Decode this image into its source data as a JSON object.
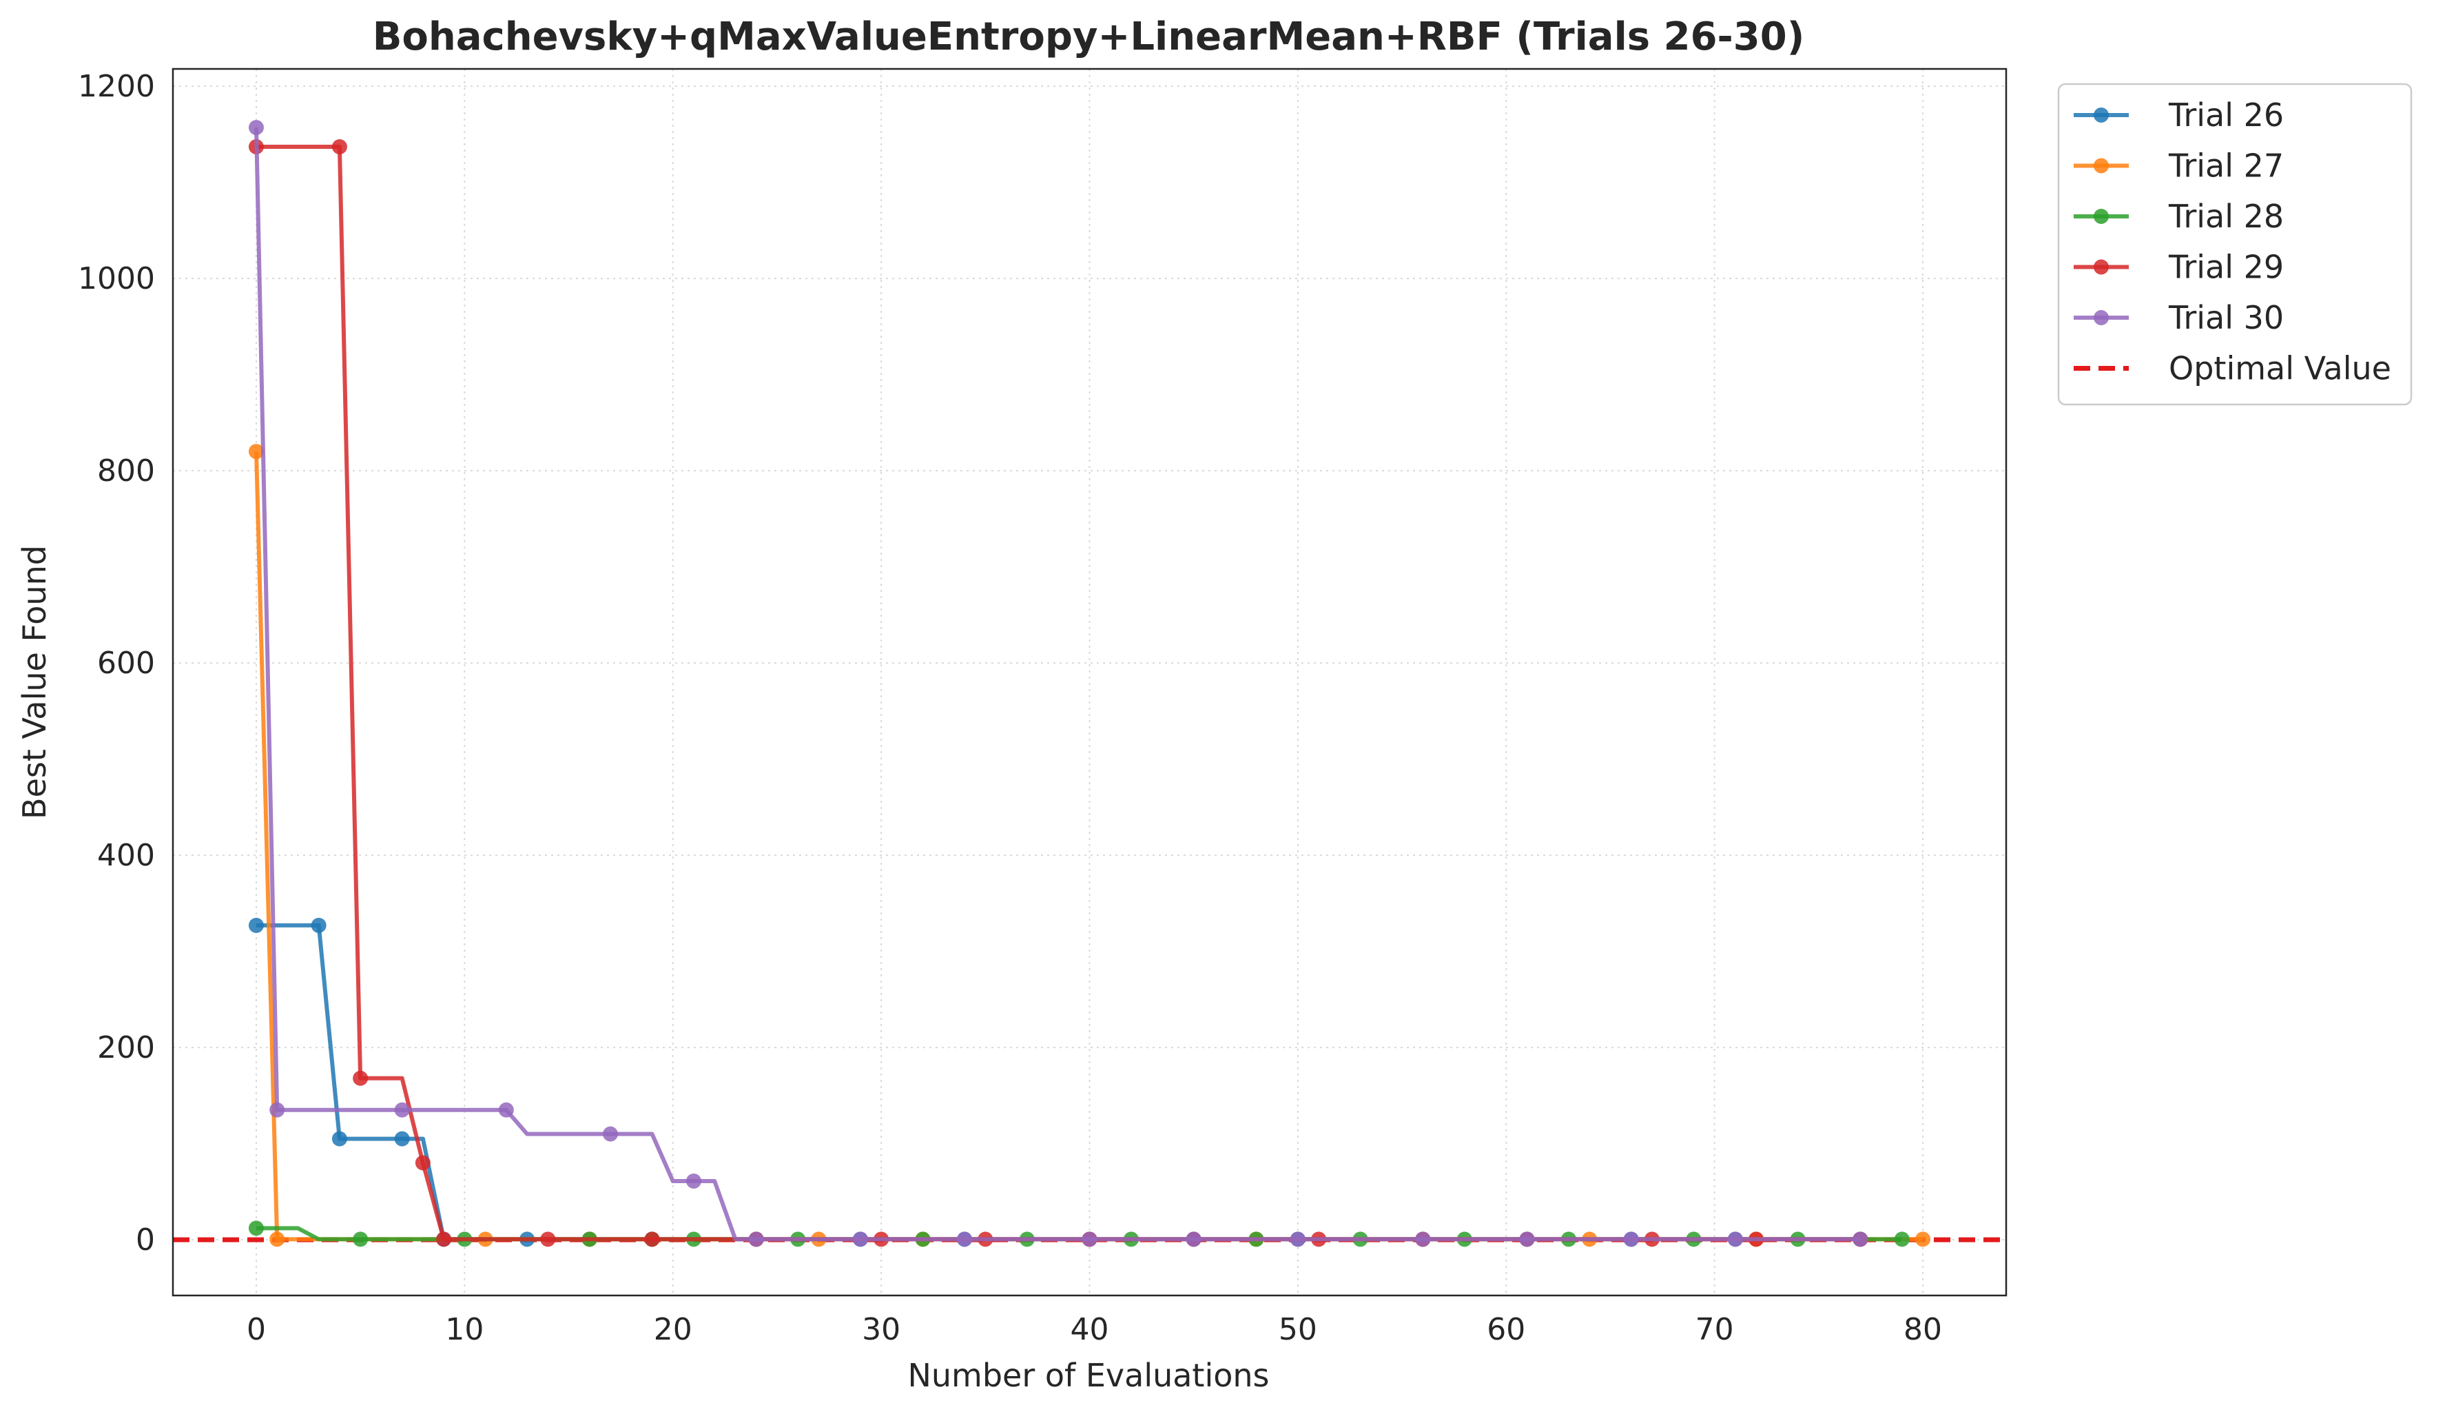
{
  "chart_data": {
    "type": "line",
    "title": "Bohachevsky+qMaxValueEntropy+LinearMean+RBF (Trials 26-30)",
    "xlabel": "Number of Evaluations",
    "ylabel": "Best Value Found",
    "xlim": [
      -4,
      84
    ],
    "ylim": [
      -58,
      1218
    ],
    "xticks": [
      0,
      10,
      20,
      30,
      40,
      50,
      60,
      70,
      80
    ],
    "yticks": [
      0,
      200,
      400,
      600,
      800,
      1000,
      1200
    ],
    "xtick_labels": [
      "0",
      "10",
      "20",
      "30",
      "40",
      "50",
      "60",
      "70",
      "80"
    ],
    "ytick_labels": [
      "0",
      "200",
      "400",
      "600",
      "800",
      "1000",
      "1200"
    ],
    "grid": true,
    "legend_position": "outside-top-right",
    "optimal_value": {
      "name": "Optimal Value",
      "value": 0,
      "color": "#e31a1c"
    },
    "series": [
      {
        "name": "Trial 26",
        "color": "#1f77b4",
        "x": [
          0,
          3,
          4,
          7,
          8,
          9,
          13,
          16,
          19,
          24,
          29,
          34,
          40,
          45,
          50,
          56,
          61,
          66,
          71,
          77
        ],
        "y": [
          327,
          327,
          105,
          105,
          105,
          0.5,
          0.5,
          0.5,
          0.5,
          0.5,
          0.5,
          0.5,
          0.5,
          0.5,
          0.5,
          0.5,
          0.5,
          0.5,
          0.5,
          0.5
        ],
        "markers": [
          0,
          3,
          4,
          7,
          9,
          13,
          16,
          19,
          24,
          29,
          34,
          40,
          45,
          50,
          56,
          61,
          66,
          71,
          77
        ]
      },
      {
        "name": "Trial 27",
        "color": "#ff7f0e",
        "x": [
          0,
          1,
          11,
          16,
          24,
          27,
          32,
          40,
          48,
          56,
          64,
          72,
          80
        ],
        "y": [
          820,
          0.5,
          0.5,
          0.5,
          0.5,
          0.5,
          0.5,
          0.5,
          0.5,
          0.5,
          0.5,
          0.5,
          0.5
        ],
        "markers": [
          0,
          1,
          11,
          16,
          24,
          27,
          32,
          40,
          48,
          56,
          64,
          72,
          80
        ]
      },
      {
        "name": "Trial 28",
        "color": "#2ca02c",
        "x": [
          0,
          2,
          3,
          5,
          10,
          16,
          19,
          21,
          26,
          32,
          37,
          42,
          48,
          53,
          58,
          63,
          69,
          74,
          79
        ],
        "y": [
          12,
          12,
          0.5,
          0.5,
          0.5,
          0.5,
          0.5,
          0.5,
          0.5,
          0.5,
          0.5,
          0.5,
          0.5,
          0.5,
          0.5,
          0.5,
          0.5,
          0.5,
          0.5
        ],
        "markers": [
          0,
          5,
          10,
          16,
          19,
          21,
          26,
          32,
          37,
          42,
          48,
          53,
          58,
          63,
          69,
          74,
          79
        ]
      },
      {
        "name": "Trial 29",
        "color": "#d62728",
        "x": [
          0,
          4,
          5,
          7,
          8,
          9,
          14,
          19,
          24,
          30,
          35,
          40,
          45,
          51,
          56,
          61,
          67,
          72,
          77
        ],
        "y": [
          1137,
          1137,
          168,
          168,
          80,
          0.5,
          0.5,
          0.5,
          0.5,
          0.5,
          0.5,
          0.5,
          0.5,
          0.5,
          0.5,
          0.5,
          0.5,
          0.5,
          0.5
        ],
        "markers": [
          0,
          4,
          5,
          8,
          9,
          14,
          19,
          24,
          30,
          35,
          40,
          45,
          51,
          56,
          61,
          67,
          72,
          77
        ]
      },
      {
        "name": "Trial 30",
        "color": "#9467bd",
        "x": [
          0,
          1,
          7,
          12,
          13,
          17,
          19,
          20,
          21,
          22,
          23,
          24,
          29,
          34,
          40,
          45,
          50,
          56,
          61,
          66,
          71,
          77
        ],
        "y": [
          1157,
          135,
          135,
          135,
          110,
          110,
          110,
          61,
          61,
          61,
          0.5,
          0.5,
          0.5,
          0.5,
          0.5,
          0.5,
          0.5,
          0.5,
          0.5,
          0.5,
          0.5,
          0.5
        ],
        "markers": [
          0,
          1,
          7,
          12,
          17,
          21,
          24,
          29,
          34,
          40,
          45,
          50,
          56,
          61,
          66,
          71,
          77
        ]
      }
    ]
  }
}
